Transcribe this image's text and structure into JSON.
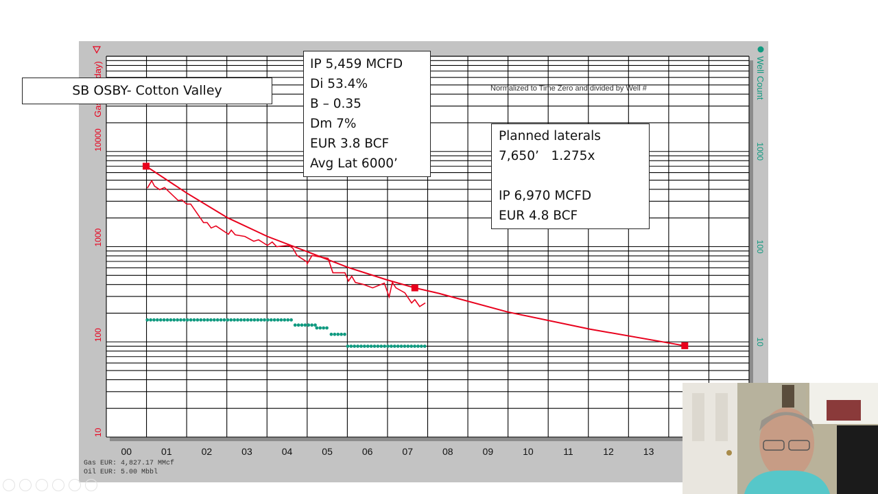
{
  "slide": {
    "title": "SB OSBY- Cotton Valley",
    "params": [
      "IP 5,459 MCFD",
      "Di 53.4%",
      "B – 0.35",
      "Dm 7%",
      "EUR 3.8 BCF",
      "Avg Lat 6000’"
    ],
    "planned": [
      "Planned laterals",
      "7,650’   1.275x",
      "",
      "IP 6,970 MCFD",
      "EUR 4.8 BCF"
    ]
  },
  "chart_data": {
    "type": "line",
    "note": "Normalized to Time Zero and divided by Well #",
    "ylabel": "Gas (Mcf/day)",
    "y2label": "Well Count",
    "yscale": "log",
    "ylim": [
      10,
      100000
    ],
    "y2lim": [
      1,
      10000
    ],
    "xlim": [
      0,
      16
    ],
    "x_tick_labels": [
      "00",
      "01",
      "02",
      "03",
      "04",
      "05",
      "06",
      "07",
      "08",
      "09",
      "10",
      "11",
      "12",
      "13"
    ],
    "y_tick_labels": [
      "10",
      "100",
      "1000",
      "10000"
    ],
    "y2_tick_labels": [
      "10",
      "100",
      "1000"
    ],
    "grid": true,
    "colors": {
      "gas": "#e8001c",
      "well_count": "#109a80",
      "grid": "#000000",
      "frame": "#c3c3c3"
    },
    "gas_actual": {
      "x": [
        1.02,
        1.13,
        1.2,
        1.33,
        1.45,
        1.79,
        1.88,
        2.0,
        2.1,
        2.42,
        2.51,
        2.61,
        2.73,
        3.04,
        3.11,
        3.21,
        3.45,
        3.67,
        3.79,
        4.01,
        4.13,
        4.24,
        4.53,
        4.64,
        4.75,
        4.99,
        5.0,
        5.12,
        5.52,
        5.64,
        5.94,
        6.03,
        6.11,
        6.2,
        6.4,
        6.63,
        6.92,
        7.04,
        7.12,
        7.21,
        7.43,
        7.6,
        7.68,
        7.8,
        7.94
      ],
      "y": [
        4110,
        4930,
        4320,
        3970,
        4180,
        3050,
        3100,
        2800,
        2800,
        1790,
        1790,
        1570,
        1650,
        1350,
        1490,
        1330,
        1280,
        1140,
        1180,
        1030,
        1120,
        1000,
        1030,
        968,
        806,
        694,
        660,
        806,
        754,
        532,
        532,
        435,
        489,
        421,
        401,
        369,
        414,
        297,
        421,
        369,
        328,
        256,
        278,
        235,
        256
      ]
    },
    "gas_forecast": {
      "x": [
        0.99,
        2.0,
        3.02,
        4.01,
        4.99,
        6.01,
        6.97,
        7.68,
        8.28,
        9.99,
        12.04,
        14.4
      ],
      "y": [
        7000,
        3660,
        2010,
        1280,
        889,
        607,
        450,
        369,
        323,
        206,
        136,
        91
      ]
    },
    "forecast_markers": {
      "x": [
        0.99,
        7.68,
        14.4
      ],
      "y": [
        7000,
        369,
        91
      ]
    },
    "well_count": [
      {
        "from": 1.02,
        "to": 4.64,
        "value": 17
      },
      {
        "from": 4.7,
        "to": 5.21,
        "value": 15
      },
      {
        "from": 5.24,
        "to": 5.55,
        "value": 14
      },
      {
        "from": 5.6,
        "to": 5.98,
        "value": 12
      },
      {
        "from": 6.01,
        "to": 7.97,
        "value": 9
      }
    ],
    "footer": [
      "Gas EUR: 4,827.17 MMcf",
      "Oil EUR: 5.00 Mbbl"
    ]
  }
}
